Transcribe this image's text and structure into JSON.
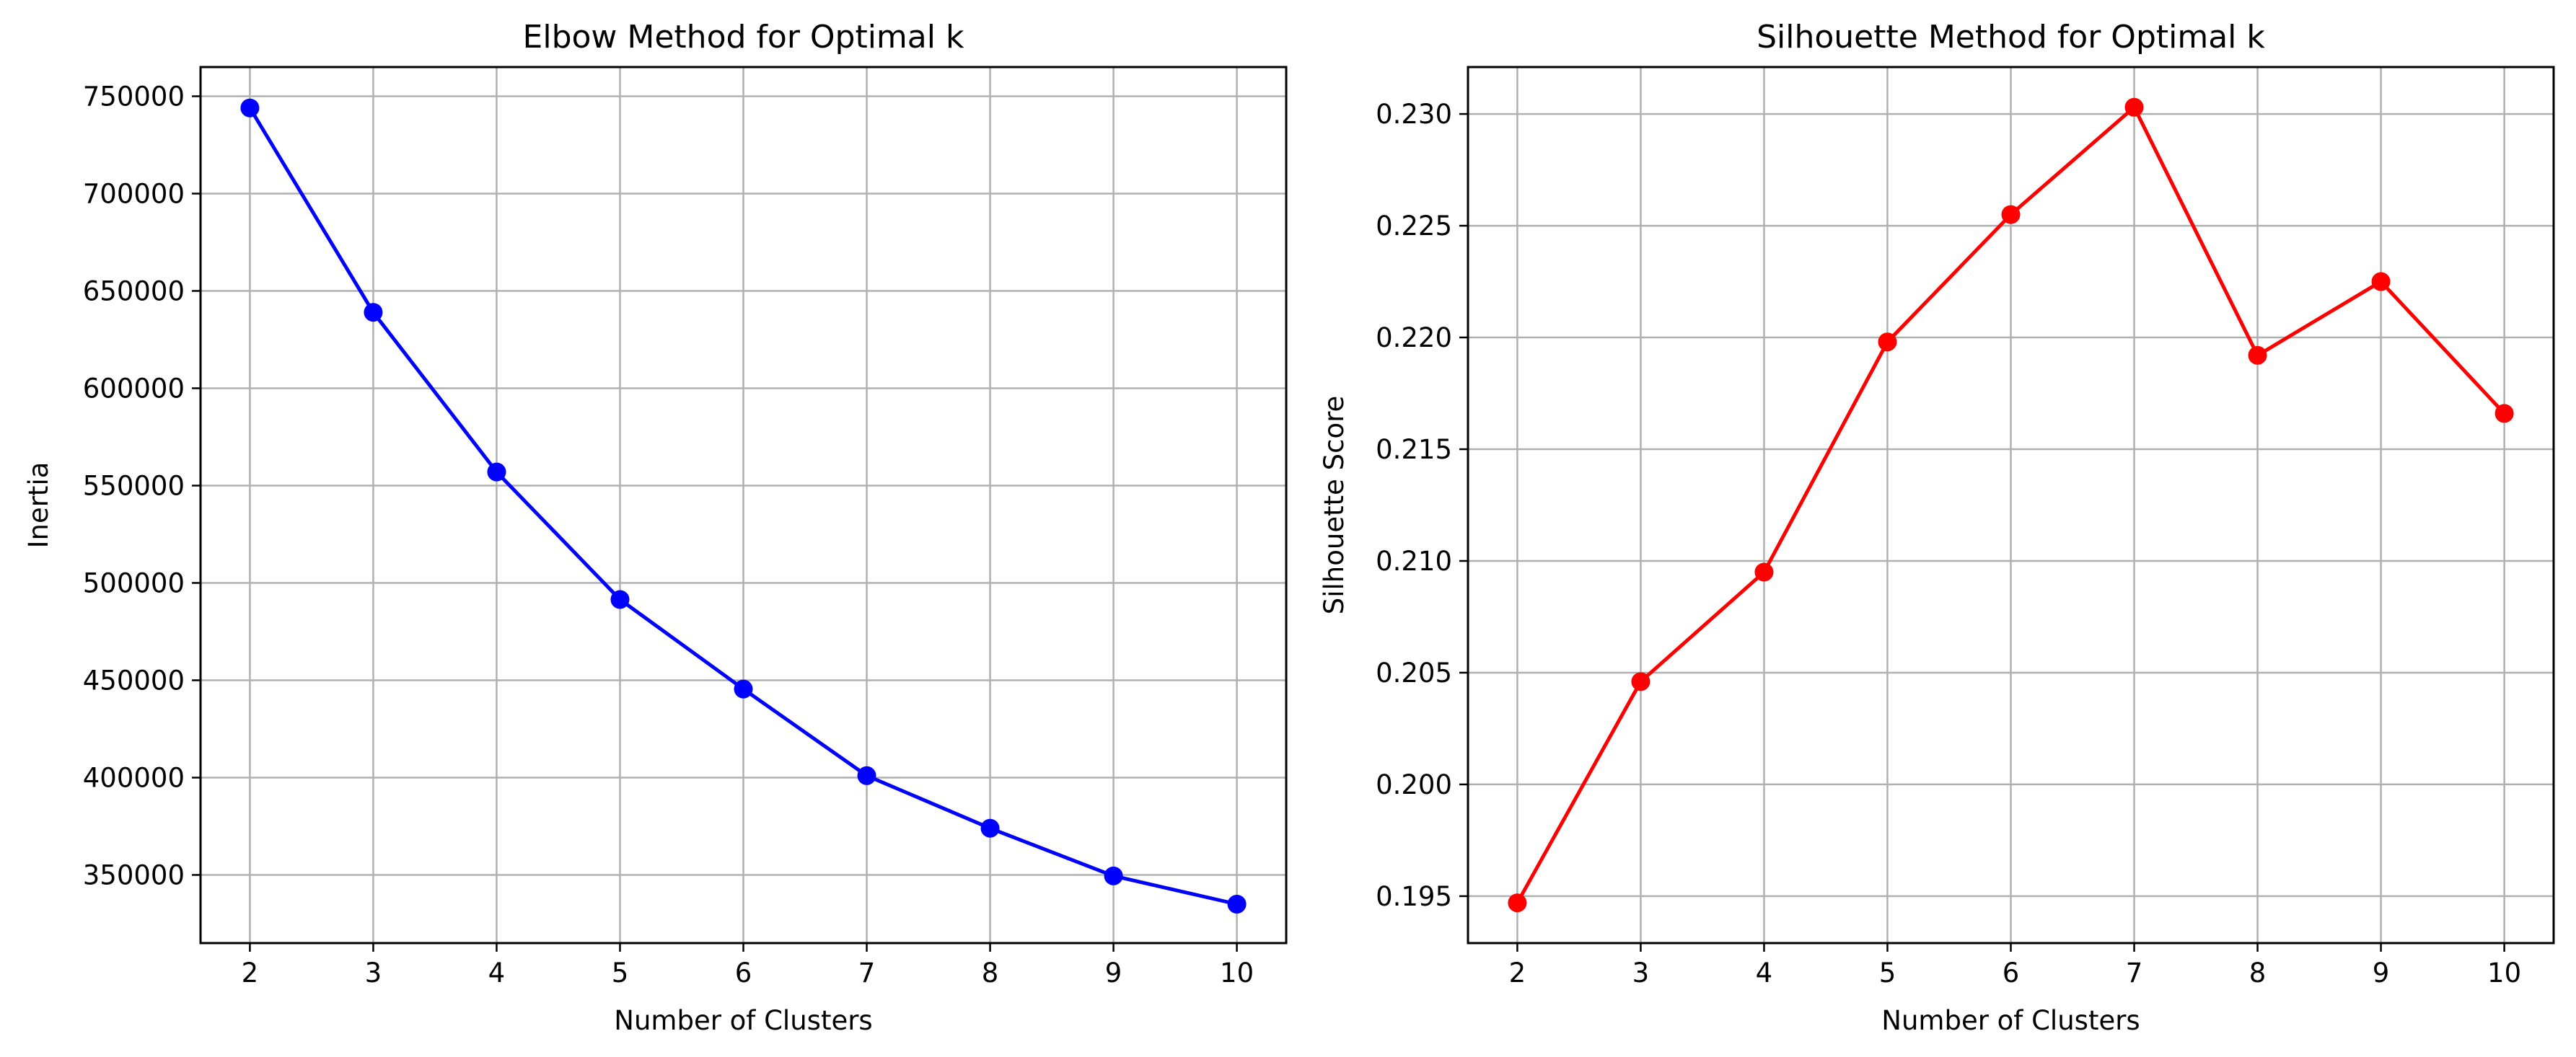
{
  "chart_data": [
    {
      "type": "line",
      "title": "Elbow Method for Optimal k",
      "xlabel": "Number of Clusters",
      "ylabel": "Inertia",
      "x": [
        2,
        3,
        4,
        5,
        6,
        7,
        8,
        9,
        10
      ],
      "xlim": [
        1.6,
        10.4
      ],
      "ylim": [
        315000,
        765000
      ],
      "yticks": [
        350000,
        400000,
        450000,
        500000,
        550000,
        600000,
        650000,
        700000,
        750000
      ],
      "ytick_labels": [
        "350000",
        "400000",
        "450000",
        "500000",
        "550000",
        "600000",
        "650000",
        "700000",
        "750000"
      ],
      "grid": true,
      "color": "#0000ff",
      "marker": "circle",
      "series": [
        {
          "values": [
            744000,
            639000,
            557000,
            491500,
            445500,
            401000,
            374000,
            349500,
            335000
          ]
        }
      ]
    },
    {
      "type": "line",
      "title": "Silhouette Method for Optimal k",
      "xlabel": "Number of Clusters",
      "ylabel": "Silhouette Score",
      "x": [
        2,
        3,
        4,
        5,
        6,
        7,
        8,
        9,
        10
      ],
      "xlim": [
        1.6,
        10.4
      ],
      "ylim": [
        0.1929,
        0.2321
      ],
      "yticks": [
        0.195,
        0.2,
        0.205,
        0.21,
        0.215,
        0.22,
        0.225,
        0.23
      ],
      "ytick_labels": [
        "0.195",
        "0.200",
        "0.205",
        "0.210",
        "0.215",
        "0.220",
        "0.225",
        "0.230"
      ],
      "grid": true,
      "color": "#ff0000",
      "marker": "circle",
      "series": [
        {
          "values": [
            0.1947,
            0.2046,
            0.2095,
            0.2198,
            0.2255,
            0.2303,
            0.2192,
            0.2225,
            0.2166
          ]
        }
      ]
    }
  ]
}
